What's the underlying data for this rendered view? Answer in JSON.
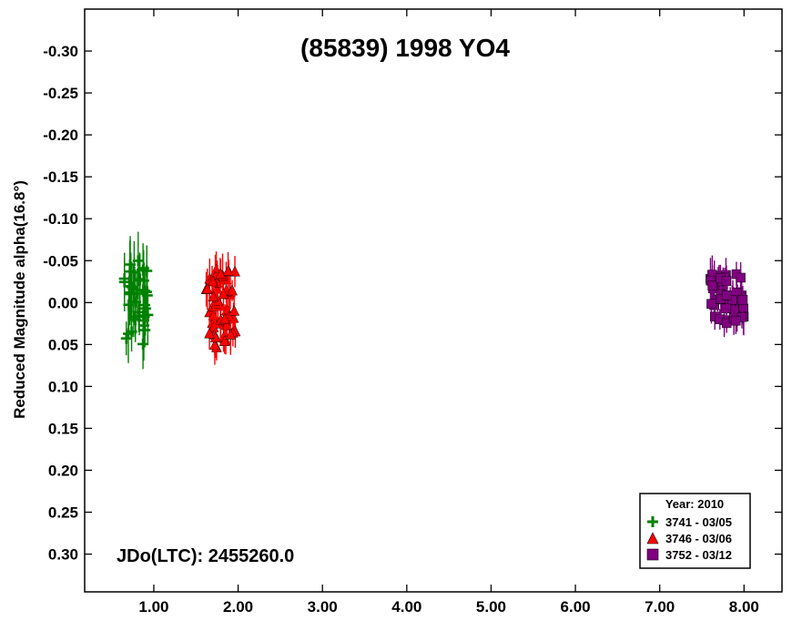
{
  "chart_data": {
    "type": "scatter",
    "title": "(85839) 1998 YO4",
    "xlabel": "",
    "ylabel": "Reduced Magnitude alpha(16.8°)",
    "annotation": "JDo(LTC): 2455260.0",
    "xlim": [
      0.18,
      8.45
    ],
    "ylim": [
      -0.35,
      0.345
    ],
    "y_inverted": true,
    "grid": false,
    "x_ticks": [
      1.0,
      2.0,
      3.0,
      4.0,
      5.0,
      6.0,
      7.0,
      8.0
    ],
    "x_tick_labels": [
      "1.00",
      "2.00",
      "3.00",
      "4.00",
      "5.00",
      "6.00",
      "7.00",
      "8.00"
    ],
    "y_ticks": [
      -0.3,
      -0.25,
      -0.2,
      -0.15,
      -0.1,
      -0.05,
      0.0,
      0.05,
      0.1,
      0.15,
      0.2,
      0.25,
      0.3
    ],
    "y_tick_labels": [
      "-0.30",
      "-0.25",
      "-0.20",
      "-0.15",
      "-0.10",
      "-0.05",
      "0.00",
      "0.05",
      "0.10",
      "0.15",
      "0.20",
      "0.25",
      "0.30"
    ],
    "legend": {
      "title": "Year: 2010",
      "placement": "bottom-right",
      "entries": [
        "3741 - 03/05",
        "3746 - 03/06",
        "3752 - 03/12"
      ]
    },
    "series": [
      {
        "name": "3741 - 03/05",
        "marker": "plus",
        "color": "#008000",
        "x_range": [
          0.65,
          0.93
        ],
        "y_range": [
          -0.06,
          0.05
        ],
        "error": 0.03,
        "count": 40
      },
      {
        "name": "3746 - 03/06",
        "marker": "triangle",
        "color": "#ff0000",
        "x_range": [
          1.62,
          1.97
        ],
        "y_range": [
          -0.04,
          0.055
        ],
        "error": 0.02,
        "count": 55
      },
      {
        "name": "3752 - 03/12",
        "marker": "square",
        "color": "#800080",
        "x_range": [
          7.6,
          8.0
        ],
        "y_range": [
          -0.035,
          0.03
        ],
        "error": 0.018,
        "count": 50
      }
    ]
  }
}
